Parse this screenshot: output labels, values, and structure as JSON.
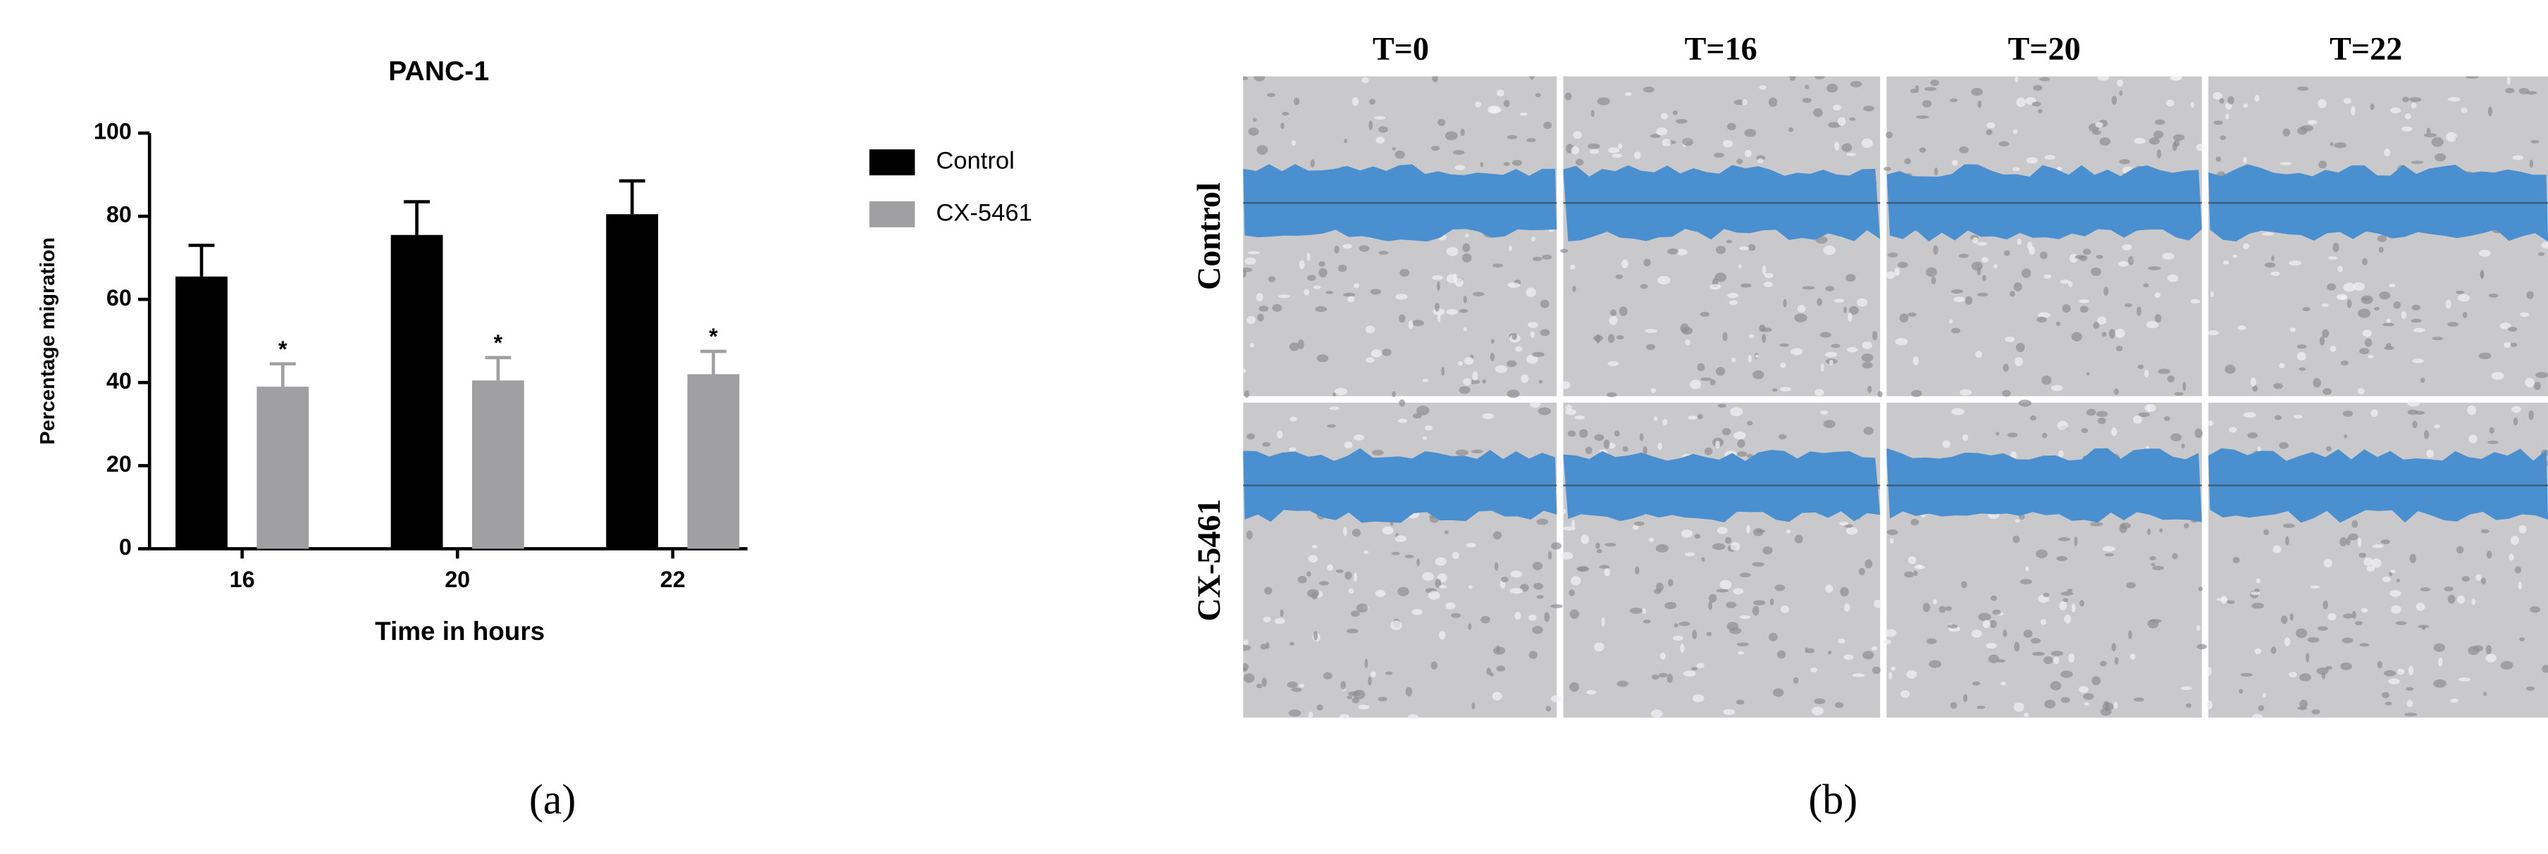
{
  "chart_data": {
    "type": "bar",
    "title": "PANC-1",
    "x_label": "Time in hours",
    "y_label": "Percentage migration",
    "categories": [
      "16",
      "20",
      "22"
    ],
    "series": [
      {
        "name": "Control",
        "color": "#000000",
        "values": [
          65.5,
          75.5,
          80.5
        ],
        "errors": [
          7.5,
          8,
          8
        ]
      },
      {
        "name": "CX-5461",
        "color": "#a0a0a2",
        "values": [
          39,
          40.5,
          42
        ],
        "errors": [
          5.5,
          5.5,
          5.5
        ],
        "markers": [
          "*",
          "*",
          "*"
        ]
      }
    ],
    "ylim": [
      0,
      100
    ],
    "yticks": [
      0,
      20,
      40,
      60,
      80,
      100
    ],
    "grid": false,
    "legend": "right"
  },
  "panel_labels": [
    "(a)",
    "(b)"
  ],
  "micrograph_grid": {
    "columns": [
      "T=0",
      "T=16",
      "T=20",
      "T=22"
    ],
    "rows": [
      "Control",
      "CX-5461"
    ]
  }
}
